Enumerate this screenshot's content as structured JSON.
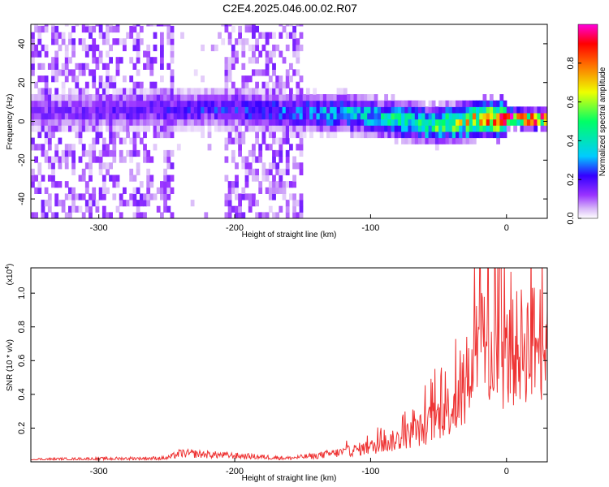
{
  "page_title": "C2E4.2025.046.00.02.R07",
  "colors": {
    "trace": "#ee3333",
    "colormap": [
      "#ffffff",
      "#d8b8f8",
      "#9933ff",
      "#3300ff",
      "#00ccff",
      "#00ff66",
      "#eeff00",
      "#ff6600",
      "#ff0000",
      "#ff00dd"
    ]
  },
  "chart_data": [
    {
      "type": "heatmap",
      "title": "C2E4.2025.046.00.02.R07",
      "xlabel": "Height of straight line (km)",
      "ylabel": "Frequency (Hz)",
      "xlim": [
        -350,
        30
      ],
      "ylim": [
        -50,
        50
      ],
      "xticks": [
        -300,
        -200,
        -100,
        0
      ],
      "xtick_labels": [
        "-300",
        "-200",
        "-100",
        "0"
      ],
      "yticks": [
        -40,
        -20,
        0,
        20,
        40
      ],
      "ytick_labels": [
        "-40",
        "-20",
        "0",
        "20",
        "40"
      ],
      "colorbar": {
        "label": "Normalized spectral amplitude",
        "range": [
          0,
          1
        ],
        "ticks": [
          0,
          0.2,
          0.4,
          0.6,
          0.8
        ],
        "tick_labels": [
          "0.0",
          "0.2",
          "0.4",
          "0.6",
          "0.8"
        ]
      },
      "ridge": {
        "x": [
          -350,
          -300,
          -250,
          -200,
          -150,
          -120,
          -100,
          -80,
          -60,
          -40,
          -20,
          0,
          30
        ],
        "center_freq": [
          3,
          4,
          5,
          5,
          3,
          3,
          1,
          -1,
          -3,
          -3,
          0,
          0,
          0
        ],
        "peak_amplitude": [
          0.15,
          0.18,
          0.22,
          0.25,
          0.3,
          0.4,
          0.45,
          0.5,
          0.55,
          0.6,
          0.8,
          0.95,
          0.95
        ]
      }
    },
    {
      "type": "line",
      "xlabel": "Height of straight line (km)",
      "ylabel": "SNR (10 * v/v)",
      "scale_label": "(x10",
      "scale_exponent": "4",
      "xlim": [
        -350,
        30
      ],
      "ylim": [
        0,
        11500
      ],
      "xticks": [
        -300,
        -200,
        -100,
        0
      ],
      "xtick_labels": [
        "-300",
        "-200",
        "-100",
        "0"
      ],
      "yticks": [
        2000,
        4000,
        6000,
        8000,
        10000
      ],
      "ytick_labels": [
        "0.2",
        "0.4",
        "0.6",
        "0.8",
        "1.0"
      ],
      "series": [
        {
          "x": [
            -350,
            -300,
            -250,
            -240,
            -200,
            -160,
            -140,
            -120,
            -100,
            -80,
            -60,
            -40,
            -30,
            -25,
            -20,
            -10,
            0,
            10,
            20,
            30
          ],
          "values": [
            200,
            250,
            300,
            700,
            500,
            300,
            500,
            800,
            1200,
            1800,
            2800,
            4500,
            5000,
            9000,
            11500,
            8000,
            8500,
            9500,
            9800,
            10000
          ]
        }
      ]
    }
  ]
}
